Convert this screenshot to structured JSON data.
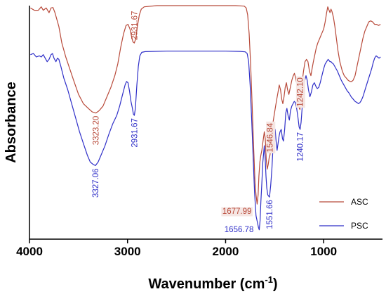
{
  "chart_data": {
    "type": "line",
    "xlabel": "Wavenumber (cm",
    "xlabel_sup": "-1",
    "xlabel_tail": ")",
    "ylabel": "Absorbance",
    "x_reversed": true,
    "xlim": [
      4000,
      400
    ],
    "x_ticks": [
      {
        "value": 4000,
        "label": "4000"
      },
      {
        "value": 3000,
        "label": "3000"
      },
      {
        "value": 2000,
        "label": "2000"
      },
      {
        "value": 1000,
        "label": "1000"
      }
    ],
    "y_units": "relative absorbance (0 = bottom of axis, 100 = top)",
    "ylim": [
      0,
      100
    ],
    "legend_position": "bottom-right",
    "series": [
      {
        "name": "ASC",
        "color": "#b84a3a",
        "points": [
          [
            3990,
            99
          ],
          [
            3950,
            98
          ],
          [
            3910,
            98
          ],
          [
            3880,
            99.5
          ],
          [
            3860,
            98
          ],
          [
            3830,
            99
          ],
          [
            3800,
            97
          ],
          [
            3780,
            99
          ],
          [
            3760,
            99.2
          ],
          [
            3740,
            97
          ],
          [
            3720,
            94
          ],
          [
            3700,
            91
          ],
          [
            3670,
            84
          ],
          [
            3630,
            78
          ],
          [
            3590,
            73
          ],
          [
            3550,
            68
          ],
          [
            3500,
            62
          ],
          [
            3450,
            58
          ],
          [
            3400,
            56
          ],
          [
            3360,
            54.5
          ],
          [
            3323,
            54
          ],
          [
            3290,
            55
          ],
          [
            3250,
            57
          ],
          [
            3210,
            61
          ],
          [
            3170,
            65
          ],
          [
            3130,
            70
          ],
          [
            3100,
            75
          ],
          [
            3070,
            82
          ],
          [
            3040,
            88
          ],
          [
            3015,
            91.5
          ],
          [
            2995,
            92
          ],
          [
            2975,
            90
          ],
          [
            2960,
            87
          ],
          [
            2945,
            84.5
          ],
          [
            2931,
            84
          ],
          [
            2915,
            86
          ],
          [
            2900,
            91
          ],
          [
            2880,
            96
          ],
          [
            2860,
            98.5
          ],
          [
            2830,
            99.5
          ],
          [
            2700,
            100
          ],
          [
            2400,
            100
          ],
          [
            2100,
            100
          ],
          [
            1900,
            100
          ],
          [
            1810,
            99.8
          ],
          [
            1790,
            99
          ],
          [
            1775,
            96
          ],
          [
            1760,
            88
          ],
          [
            1745,
            75
          ],
          [
            1730,
            58
          ],
          [
            1715,
            40
          ],
          [
            1700,
            24
          ],
          [
            1690,
            19
          ],
          [
            1678,
            15
          ],
          [
            1668,
            19
          ],
          [
            1660,
            27
          ],
          [
            1650,
            33
          ],
          [
            1640,
            36
          ],
          [
            1630,
            38
          ],
          [
            1618,
            42
          ],
          [
            1605,
            46
          ],
          [
            1595,
            43
          ],
          [
            1585,
            34
          ],
          [
            1575,
            30
          ],
          [
            1565,
            32
          ],
          [
            1555,
            35
          ],
          [
            1547,
            36
          ],
          [
            1535,
            41
          ],
          [
            1520,
            49
          ],
          [
            1505,
            53
          ],
          [
            1490,
            57
          ],
          [
            1478,
            60
          ],
          [
            1465,
            63
          ],
          [
            1453,
            66
          ],
          [
            1440,
            64
          ],
          [
            1428,
            60
          ],
          [
            1416,
            58
          ],
          [
            1404,
            61
          ],
          [
            1392,
            65
          ],
          [
            1380,
            67
          ],
          [
            1368,
            64
          ],
          [
            1355,
            62
          ],
          [
            1340,
            65
          ],
          [
            1325,
            68
          ],
          [
            1310,
            70
          ],
          [
            1298,
            71
          ],
          [
            1285,
            69
          ],
          [
            1272,
            66
          ],
          [
            1258,
            60
          ],
          [
            1248,
            56
          ],
          [
            1242,
            55.5
          ],
          [
            1232,
            60
          ],
          [
            1220,
            67
          ],
          [
            1205,
            72
          ],
          [
            1190,
            76
          ],
          [
            1175,
            77
          ],
          [
            1160,
            76
          ],
          [
            1145,
            72
          ],
          [
            1130,
            70
          ],
          [
            1118,
            73
          ],
          [
            1105,
            76
          ],
          [
            1090,
            79
          ],
          [
            1075,
            82
          ],
          [
            1060,
            84
          ],
          [
            1040,
            86
          ],
          [
            1020,
            88
          ],
          [
            1000,
            90
          ],
          [
            985,
            93
          ],
          [
            970,
            97
          ],
          [
            958,
            99.5
          ],
          [
            945,
            98
          ],
          [
            935,
            97
          ],
          [
            925,
            98.5
          ],
          [
            915,
            97.5
          ],
          [
            900,
            95
          ],
          [
            885,
            91
          ],
          [
            870,
            86
          ],
          [
            855,
            81
          ],
          [
            835,
            76
          ],
          [
            810,
            72
          ],
          [
            790,
            70
          ],
          [
            770,
            69
          ],
          [
            750,
            68
          ],
          [
            730,
            67.5
          ],
          [
            715,
            67.5
          ],
          [
            700,
            68
          ],
          [
            680,
            70
          ],
          [
            660,
            74
          ],
          [
            640,
            78
          ],
          [
            620,
            82
          ],
          [
            600,
            86
          ],
          [
            580,
            89
          ],
          [
            560,
            91
          ],
          [
            540,
            93
          ],
          [
            520,
            93.5
          ],
          [
            500,
            93
          ],
          [
            480,
            92
          ],
          [
            460,
            92
          ],
          [
            440,
            91.5
          ],
          [
            420,
            92
          ]
        ]
      },
      {
        "name": "PSC",
        "color": "#2f2fc8",
        "points": [
          [
            3990,
            79
          ],
          [
            3960,
            79.5
          ],
          [
            3930,
            78
          ],
          [
            3900,
            78.5
          ],
          [
            3880,
            78
          ],
          [
            3860,
            79
          ],
          [
            3840,
            77.5
          ],
          [
            3820,
            76
          ],
          [
            3800,
            77
          ],
          [
            3780,
            79
          ],
          [
            3765,
            79.5
          ],
          [
            3750,
            77.5
          ],
          [
            3730,
            76
          ],
          [
            3715,
            77.5
          ],
          [
            3700,
            77
          ],
          [
            3680,
            74
          ],
          [
            3650,
            69
          ],
          [
            3610,
            64
          ],
          [
            3570,
            58
          ],
          [
            3530,
            52
          ],
          [
            3490,
            46
          ],
          [
            3450,
            41
          ],
          [
            3410,
            36
          ],
          [
            3380,
            33
          ],
          [
            3350,
            32
          ],
          [
            3327,
            31.5
          ],
          [
            3300,
            33
          ],
          [
            3270,
            36
          ],
          [
            3230,
            40
          ],
          [
            3190,
            45
          ],
          [
            3150,
            49.5
          ],
          [
            3110,
            53
          ],
          [
            3080,
            57
          ],
          [
            3050,
            62
          ],
          [
            3025,
            66
          ],
          [
            3010,
            67.5
          ],
          [
            2995,
            67
          ],
          [
            2980,
            63.5
          ],
          [
            2965,
            59
          ],
          [
            2950,
            56
          ],
          [
            2940,
            53.5
          ],
          [
            2931,
            53
          ],
          [
            2920,
            56
          ],
          [
            2905,
            66
          ],
          [
            2890,
            74
          ],
          [
            2875,
            78.5
          ],
          [
            2855,
            80
          ],
          [
            2820,
            80.3
          ],
          [
            2600,
            80.5
          ],
          [
            2300,
            80.5
          ],
          [
            2000,
            80.5
          ],
          [
            1850,
            80.4
          ],
          [
            1800,
            80.2
          ],
          [
            1780,
            79.5
          ],
          [
            1765,
            76
          ],
          [
            1750,
            66
          ],
          [
            1735,
            52
          ],
          [
            1720,
            36
          ],
          [
            1705,
            20
          ],
          [
            1690,
            10
          ],
          [
            1675,
            7
          ],
          [
            1665,
            5
          ],
          [
            1657,
            4
          ],
          [
            1648,
            8
          ],
          [
            1640,
            16
          ],
          [
            1630,
            24
          ],
          [
            1620,
            33
          ],
          [
            1612,
            37
          ],
          [
            1605,
            40
          ],
          [
            1597,
            35
          ],
          [
            1588,
            27
          ],
          [
            1580,
            22
          ],
          [
            1570,
            19
          ],
          [
            1562,
            18.5
          ],
          [
            1552,
            18
          ],
          [
            1540,
            23
          ],
          [
            1528,
            30
          ],
          [
            1516,
            40
          ],
          [
            1505,
            45
          ],
          [
            1494,
            47
          ],
          [
            1485,
            42
          ],
          [
            1475,
            38
          ],
          [
            1465,
            41
          ],
          [
            1455,
            44
          ],
          [
            1445,
            46
          ],
          [
            1433,
            47
          ],
          [
            1420,
            43
          ],
          [
            1410,
            42
          ],
          [
            1398,
            47
          ],
          [
            1386,
            54
          ],
          [
            1375,
            56
          ],
          [
            1363,
            53
          ],
          [
            1350,
            51
          ],
          [
            1338,
            55
          ],
          [
            1325,
            57
          ],
          [
            1312,
            58
          ],
          [
            1300,
            59
          ],
          [
            1288,
            58.5
          ],
          [
            1275,
            56
          ],
          [
            1262,
            52
          ],
          [
            1250,
            48
          ],
          [
            1240,
            47
          ],
          [
            1230,
            50
          ],
          [
            1218,
            57
          ],
          [
            1205,
            63
          ],
          [
            1192,
            68
          ],
          [
            1180,
            70
          ],
          [
            1168,
            68
          ],
          [
            1155,
            64
          ],
          [
            1140,
            61
          ],
          [
            1125,
            63
          ],
          [
            1110,
            66
          ],
          [
            1095,
            67
          ],
          [
            1080,
            65.5
          ],
          [
            1065,
            64.5
          ],
          [
            1050,
            65
          ],
          [
            1035,
            67
          ],
          [
            1018,
            70
          ],
          [
            1000,
            73
          ],
          [
            985,
            75
          ],
          [
            970,
            76
          ],
          [
            955,
            77
          ],
          [
            945,
            76.5
          ],
          [
            935,
            76
          ],
          [
            925,
            76
          ],
          [
            915,
            75.5
          ],
          [
            900,
            75
          ],
          [
            880,
            73.5
          ],
          [
            860,
            72
          ],
          [
            840,
            70
          ],
          [
            820,
            68
          ],
          [
            800,
            66.5
          ],
          [
            780,
            65
          ],
          [
            760,
            63.5
          ],
          [
            740,
            62.5
          ],
          [
            720,
            61
          ],
          [
            700,
            60
          ],
          [
            680,
            59
          ],
          [
            660,
            58.5
          ],
          [
            645,
            58
          ],
          [
            630,
            58.5
          ],
          [
            615,
            59.5
          ],
          [
            600,
            61
          ],
          [
            585,
            63
          ],
          [
            570,
            65
          ],
          [
            555,
            67
          ],
          [
            540,
            69
          ],
          [
            525,
            71
          ],
          [
            510,
            73
          ],
          [
            495,
            75.5
          ],
          [
            480,
            77.5
          ],
          [
            465,
            78.5
          ],
          [
            450,
            78
          ],
          [
            435,
            77.5
          ],
          [
            420,
            78
          ]
        ]
      }
    ],
    "annotations": [
      {
        "text": "3323.20",
        "x": 3323,
        "series": "ASC",
        "color": "#b84a3a"
      },
      {
        "text": "2931.67",
        "x": 2931,
        "series": "ASC",
        "color": "#b84a3a"
      },
      {
        "text": "1677.99",
        "x": 1678,
        "series": "ASC",
        "color": "#b84a3a",
        "boxed": true
      },
      {
        "text": "1546.84",
        "x": 1547,
        "series": "ASC",
        "color": "#b84a3a",
        "boxed": true
      },
      {
        "text": "1242.10",
        "x": 1242,
        "series": "ASC",
        "color": "#b84a3a",
        "boxed": true
      },
      {
        "text": "3327.06",
        "x": 3327,
        "series": "PSC",
        "color": "#2f2fc8"
      },
      {
        "text": "2931.67",
        "x": 2931,
        "series": "PSC",
        "color": "#2f2fc8"
      },
      {
        "text": "1656.78",
        "x": 1657,
        "series": "PSC",
        "color": "#2f2fc8"
      },
      {
        "text": "1551.66",
        "x": 1552,
        "series": "PSC",
        "color": "#2f2fc8"
      },
      {
        "text": "1240.17",
        "x": 1240,
        "series": "PSC",
        "color": "#2f2fc8"
      }
    ]
  }
}
